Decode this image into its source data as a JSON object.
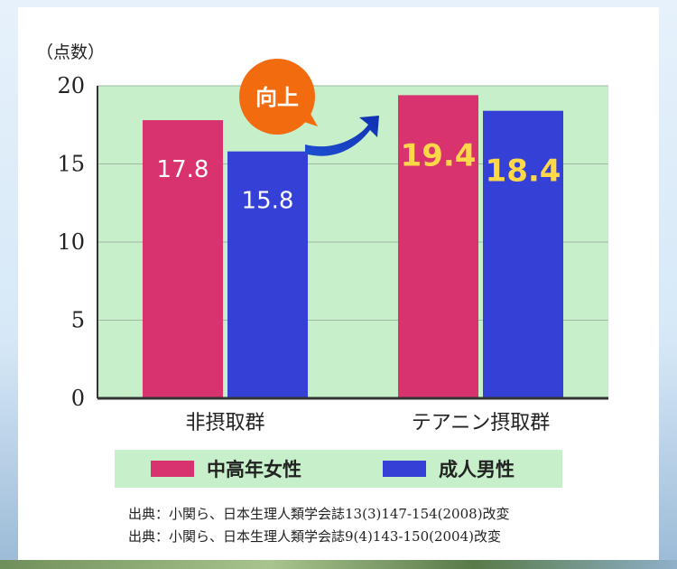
{
  "chart_data": {
    "type": "bar",
    "categories": [
      "非摂取群",
      "テアニン摂取群"
    ],
    "series": [
      {
        "name": "中高年女性",
        "values": [
          17.8,
          19.4
        ],
        "color": "#d9336f"
      },
      {
        "name": "成人男性",
        "values": [
          15.8,
          18.4
        ],
        "color": "#3440d6"
      }
    ],
    "ylim": [
      0,
      20
    ],
    "yticks": [
      0,
      5,
      10,
      15,
      20
    ],
    "ylabel": "（点数）",
    "grid": true,
    "plot_background": "#c6efca",
    "legend_position": "bottom"
  },
  "callout": {
    "text": "向上",
    "color": "#f26b0f",
    "arrow_color": "#1f3fc4"
  },
  "sources": [
    "出典：小関ら、日本生理人類学会誌13(3)147-154(2008)改変",
    "出典：小関ら、日本生理人類学会誌9(4)143-150(2004)改変"
  ]
}
